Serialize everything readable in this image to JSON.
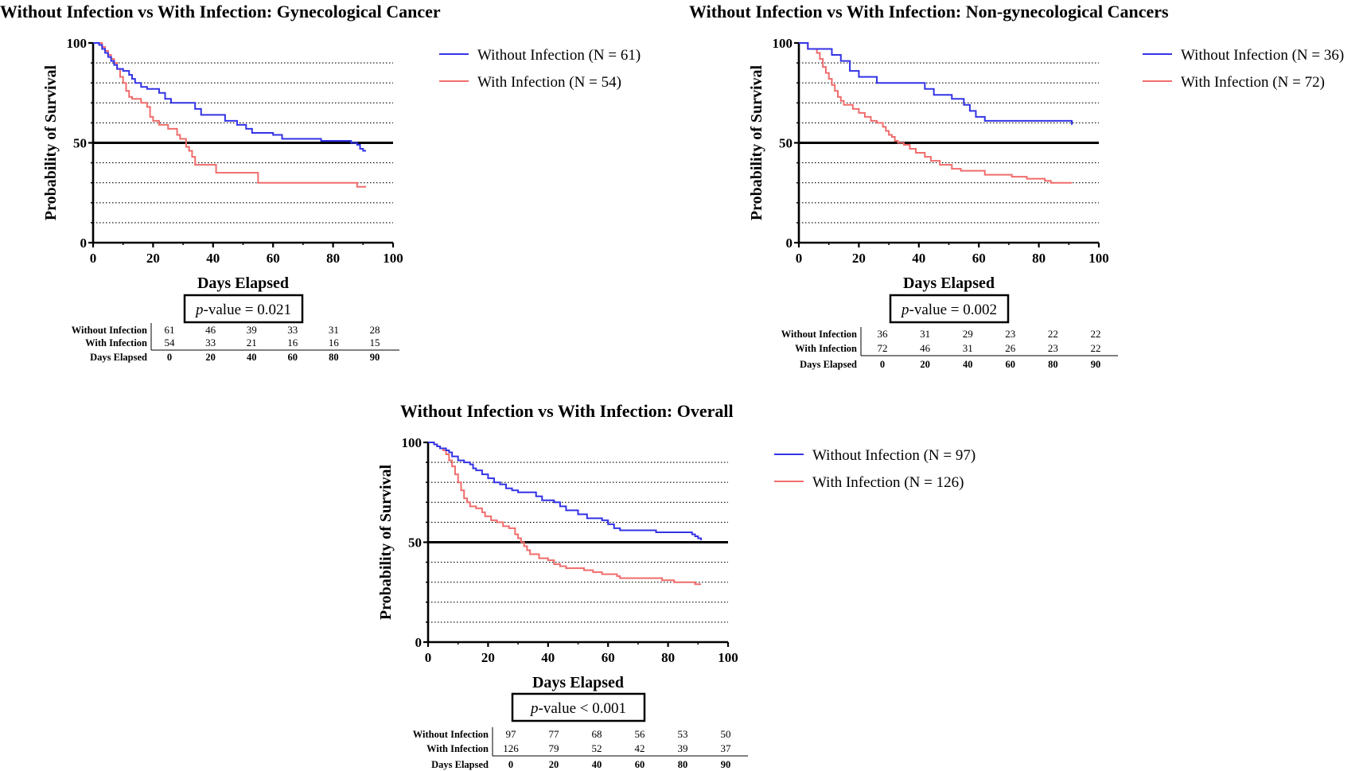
{
  "colors": {
    "without": "#3333e6",
    "with": "#f06c6c",
    "axis": "#000000",
    "grid": "#000000"
  },
  "chart_data": [
    {
      "type": "line",
      "subtype": "kaplan-meier",
      "title": "Without Infection vs With Infection: Gynecological Cancer",
      "xlabel": "Days Elapsed",
      "ylabel": "Probability of Survival",
      "xlim": [
        0,
        100
      ],
      "ylim": [
        0,
        100
      ],
      "xticks": [
        0,
        20,
        40,
        60,
        80,
        100
      ],
      "yticks": [
        0,
        50,
        100
      ],
      "reference_line": 50,
      "grid": "dotted horizontal",
      "legend_position": "right",
      "p_value": {
        "prefix": "p",
        "text": "-value = 0.021"
      },
      "series": [
        {
          "name": "Without Infection (N = 61)",
          "color_key": "without",
          "points": [
            [
              0,
              100
            ],
            [
              2,
              99
            ],
            [
              3,
              97
            ],
            [
              4,
              95
            ],
            [
              5,
              93
            ],
            [
              6,
              91
            ],
            [
              7,
              89
            ],
            [
              8,
              87
            ],
            [
              10,
              86
            ],
            [
              12,
              84
            ],
            [
              13,
              82
            ],
            [
              14,
              80
            ],
            [
              16,
              78
            ],
            [
              18,
              77
            ],
            [
              22,
              75
            ],
            [
              24,
              72
            ],
            [
              26,
              70
            ],
            [
              34,
              67
            ],
            [
              36,
              64
            ],
            [
              44,
              61
            ],
            [
              48,
              59
            ],
            [
              51,
              57
            ],
            [
              53,
              55
            ],
            [
              60,
              54
            ],
            [
              63,
              52
            ],
            [
              76,
              51
            ],
            [
              86,
              50
            ],
            [
              88,
              49
            ],
            [
              89,
              47
            ],
            [
              90,
              46
            ],
            [
              91,
              46
            ]
          ]
        },
        {
          "name": "With Infection (N = 54)",
          "color_key": "with",
          "points": [
            [
              0,
              100
            ],
            [
              3,
              98
            ],
            [
              4,
              96
            ],
            [
              5,
              94
            ],
            [
              6,
              92
            ],
            [
              7,
              90
            ],
            [
              8,
              87
            ],
            [
              9,
              83
            ],
            [
              10,
              80
            ],
            [
              11,
              76
            ],
            [
              12,
              73
            ],
            [
              13,
              72
            ],
            [
              16,
              70
            ],
            [
              18,
              68
            ],
            [
              19,
              63
            ],
            [
              20,
              61
            ],
            [
              22,
              59
            ],
            [
              25,
              57
            ],
            [
              28,
              54
            ],
            [
              29,
              52
            ],
            [
              31,
              48
            ],
            [
              32,
              46
            ],
            [
              33,
              43
            ],
            [
              34,
              39
            ],
            [
              41,
              35
            ],
            [
              55,
              30
            ],
            [
              87,
              30
            ],
            [
              88,
              28
            ],
            [
              91,
              28
            ]
          ]
        }
      ],
      "risk_table": {
        "rows": [
          {
            "label": "Without Infection",
            "values": [
              "61",
              "46",
              "39",
              "33",
              "31",
              "28"
            ]
          },
          {
            "label": "With Infection",
            "values": [
              "54",
              "33",
              "21",
              "16",
              "16",
              "15"
            ]
          }
        ],
        "days_label": "Days Elapsed",
        "days": [
          "0",
          "20",
          "40",
          "60",
          "80",
          "90"
        ]
      }
    },
    {
      "type": "line",
      "subtype": "kaplan-meier",
      "title": "Without Infection vs With Infection: Non-gynecological Cancers",
      "xlabel": "Days Elapsed",
      "ylabel": "Probability of Survival",
      "xlim": [
        0,
        100
      ],
      "ylim": [
        0,
        100
      ],
      "xticks": [
        0,
        20,
        40,
        60,
        80,
        100
      ],
      "yticks": [
        0,
        50,
        100
      ],
      "reference_line": 50,
      "grid": "dotted horizontal",
      "legend_position": "right",
      "p_value": {
        "prefix": "p",
        "text": "-value = 0.002"
      },
      "series": [
        {
          "name": "Without Infection (N = 36)",
          "color_key": "without",
          "points": [
            [
              0,
              100
            ],
            [
              3,
              97
            ],
            [
              11,
              94
            ],
            [
              14,
              91
            ],
            [
              17,
              86
            ],
            [
              20,
              83
            ],
            [
              26,
              80
            ],
            [
              42,
              77
            ],
            [
              45,
              74
            ],
            [
              51,
              72
            ],
            [
              55,
              69
            ],
            [
              57,
              66
            ],
            [
              59,
              63
            ],
            [
              62,
              61
            ],
            [
              91,
              59
            ]
          ]
        },
        {
          "name": "With Infection (N = 72)",
          "color_key": "with",
          "points": [
            [
              0,
              100
            ],
            [
              3,
              97
            ],
            [
              6,
              95
            ],
            [
              7,
              92
            ],
            [
              8,
              88
            ],
            [
              9,
              85
            ],
            [
              10,
              82
            ],
            [
              11,
              79
            ],
            [
              12,
              76
            ],
            [
              13,
              73
            ],
            [
              14,
              71
            ],
            [
              15,
              69
            ],
            [
              18,
              67
            ],
            [
              20,
              65
            ],
            [
              22,
              63
            ],
            [
              24,
              61
            ],
            [
              26,
              60
            ],
            [
              28,
              58
            ],
            [
              29,
              56
            ],
            [
              30,
              54
            ],
            [
              31,
              53
            ],
            [
              32,
              51
            ],
            [
              33,
              50
            ],
            [
              35,
              49
            ],
            [
              37,
              47
            ],
            [
              39,
              45
            ],
            [
              42,
              43
            ],
            [
              44,
              41
            ],
            [
              47,
              39
            ],
            [
              51,
              37
            ],
            [
              54,
              36
            ],
            [
              62,
              34
            ],
            [
              71,
              33
            ],
            [
              76,
              32
            ],
            [
              82,
              31
            ],
            [
              84,
              30
            ],
            [
              91,
              30
            ]
          ]
        }
      ],
      "risk_table": {
        "rows": [
          {
            "label": "Without Infection",
            "values": [
              "36",
              "31",
              "29",
              "23",
              "22",
              "22"
            ]
          },
          {
            "label": "With Infection",
            "values": [
              "72",
              "46",
              "31",
              "26",
              "23",
              "22"
            ]
          }
        ],
        "days_label": "Days Elapsed",
        "days": [
          "0",
          "20",
          "40",
          "60",
          "80",
          "90"
        ]
      }
    },
    {
      "type": "line",
      "subtype": "kaplan-meier",
      "title": "Without Infection vs With Infection: Overall",
      "xlabel": "Days Elapsed",
      "ylabel": "Probability of Survival",
      "xlim": [
        0,
        100
      ],
      "ylim": [
        0,
        100
      ],
      "xticks": [
        0,
        20,
        40,
        60,
        80,
        100
      ],
      "yticks": [
        0,
        50,
        100
      ],
      "reference_line": 50,
      "grid": "dotted horizontal",
      "legend_position": "right",
      "p_value": {
        "prefix": "p",
        "text": "-value < 0.001"
      },
      "series": [
        {
          "name": "Without Infection (N = 97)",
          "color_key": "without",
          "points": [
            [
              0,
              100
            ],
            [
              2,
              99
            ],
            [
              3,
              98
            ],
            [
              4,
              97
            ],
            [
              6,
              96
            ],
            [
              7,
              95
            ],
            [
              8,
              93
            ],
            [
              10,
              91
            ],
            [
              12,
              90
            ],
            [
              14,
              89
            ],
            [
              15,
              87
            ],
            [
              16,
              86
            ],
            [
              18,
              84
            ],
            [
              20,
              82
            ],
            [
              22,
              80
            ],
            [
              24,
              79
            ],
            [
              26,
              77
            ],
            [
              28,
              76
            ],
            [
              30,
              75
            ],
            [
              36,
              73
            ],
            [
              38,
              71
            ],
            [
              42,
              70
            ],
            [
              44,
              68
            ],
            [
              46,
              66
            ],
            [
              50,
              64
            ],
            [
              53,
              62
            ],
            [
              58,
              61
            ],
            [
              60,
              59
            ],
            [
              62,
              57
            ],
            [
              64,
              56
            ],
            [
              76,
              55
            ],
            [
              88,
              54
            ],
            [
              89,
              53
            ],
            [
              90,
              52
            ],
            [
              91,
              51
            ]
          ]
        },
        {
          "name": "With Infection (N = 126)",
          "color_key": "with",
          "points": [
            [
              0,
              100
            ],
            [
              2,
              99
            ],
            [
              3,
              98
            ],
            [
              4,
              97
            ],
            [
              5,
              96
            ],
            [
              6,
              94
            ],
            [
              7,
              91
            ],
            [
              8,
              88
            ],
            [
              9,
              84
            ],
            [
              10,
              80
            ],
            [
              11,
              76
            ],
            [
              12,
              72
            ],
            [
              13,
              70
            ],
            [
              14,
              68
            ],
            [
              16,
              67
            ],
            [
              18,
              65
            ],
            [
              19,
              63
            ],
            [
              21,
              61
            ],
            [
              23,
              60
            ],
            [
              25,
              58
            ],
            [
              27,
              57
            ],
            [
              29,
              54
            ],
            [
              30,
              52
            ],
            [
              31,
              50
            ],
            [
              32,
              48
            ],
            [
              33,
              46
            ],
            [
              34,
              44
            ],
            [
              37,
              42
            ],
            [
              40,
              41
            ],
            [
              42,
              39
            ],
            [
              44,
              38
            ],
            [
              46,
              37
            ],
            [
              52,
              36
            ],
            [
              55,
              35
            ],
            [
              58,
              34
            ],
            [
              63,
              33
            ],
            [
              64,
              32
            ],
            [
              78,
              31
            ],
            [
              82,
              30
            ],
            [
              89,
              29
            ],
            [
              91,
              29
            ]
          ]
        }
      ],
      "risk_table": {
        "rows": [
          {
            "label": "Without Infection",
            "values": [
              "97",
              "77",
              "68",
              "56",
              "53",
              "50"
            ]
          },
          {
            "label": "With Infection",
            "values": [
              "126",
              "79",
              "52",
              "42",
              "39",
              "37"
            ]
          }
        ],
        "days_label": "Days Elapsed",
        "days": [
          "0",
          "20",
          "40",
          "60",
          "80",
          "90"
        ]
      }
    }
  ]
}
